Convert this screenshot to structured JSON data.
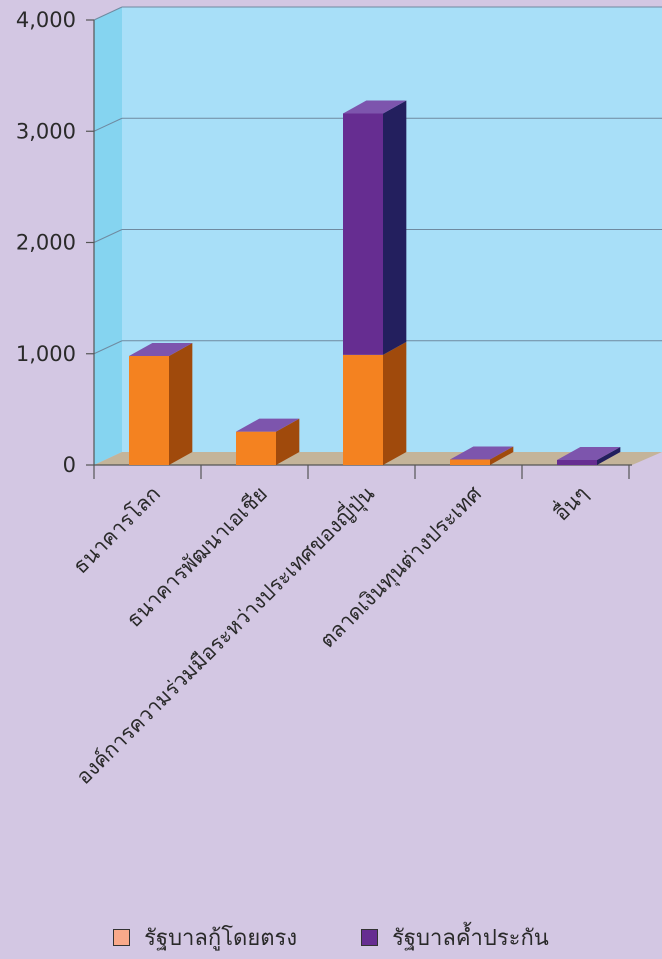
{
  "chart_data": {
    "type": "bar",
    "stacked": true,
    "three_d": true,
    "categories": [
      "ธนาคารโลก",
      "ธนาคารพัฒนาเอเชีย",
      "องค์การความร่วมมือระหว่างประเทศของญี่ปุ่น",
      "ตลาดเงินทุนต่างประเทศ",
      "อื่นๆ"
    ],
    "series": [
      {
        "name": "รัฐบาลกู้โดยตรง",
        "color": "#f48220",
        "side_color": "#a04a0c",
        "values": [
          980,
          300,
          990,
          50,
          0
        ]
      },
      {
        "name": "รัฐบาลค้ำประกัน",
        "color": "#662d91",
        "side_color": "#231f5e",
        "values": [
          0,
          0,
          2170,
          0,
          45
        ]
      }
    ],
    "y_ticks": [
      "0",
      "1,000",
      "2,000",
      "3,000",
      "4,000"
    ],
    "ylim": [
      0,
      4000
    ],
    "grid": true,
    "legend_position": "bottom",
    "legend_swatch_colors": [
      "#f9a98a",
      "#662d91"
    ],
    "colors": {
      "page_background": "#d3c7e3",
      "plot_background": "#a8dff8",
      "left_wall": "#85d4f0",
      "floor": "#c4b49a",
      "top_face": "#7d55ad"
    }
  }
}
